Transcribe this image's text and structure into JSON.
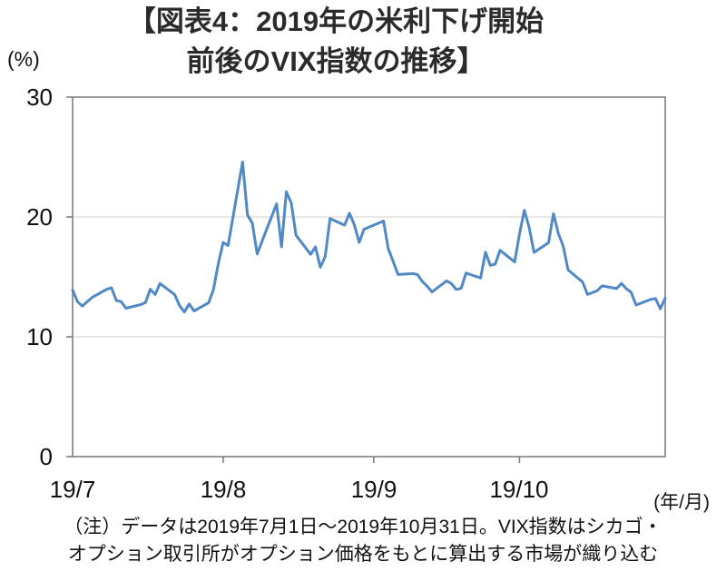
{
  "title": {
    "line1": "【図表4：2019年の米利下げ開始",
    "line2": "前後のVIX指数の推移】"
  },
  "note": {
    "line1": "（注）データは2019年7月1日～2019年10月31日。VIX指数はシカゴ・",
    "line2": "オプション取引所がオプション価格をもとに算出する市場が織り込む"
  },
  "chart_data": {
    "type": "line",
    "title": "2019年の米利下げ開始前後のVIX指数の推移",
    "ylabel": "(%)",
    "xlabel": "(年/月)",
    "ylim": [
      0,
      30
    ],
    "y_ticks": [
      "30",
      "20",
      "10",
      "0"
    ],
    "y_gridlines": [
      10,
      20
    ],
    "x_tick_labels": [
      "19/7",
      "19/8",
      "19/9",
      "19/10"
    ],
    "grid": "horizontal",
    "legend": "none",
    "line_color": "#5089c5",
    "axis_color": "#7f7f7f",
    "grid_color": "#d9d9d9",
    "series_name": "VIX指数",
    "dates": [
      "7/1",
      "7/2",
      "7/3",
      "7/5",
      "7/8",
      "7/9",
      "7/10",
      "7/11",
      "7/12",
      "7/15",
      "7/16",
      "7/17",
      "7/18",
      "7/19",
      "7/22",
      "7/23",
      "7/24",
      "7/25",
      "7/26",
      "7/29",
      "7/30",
      "7/31",
      "8/1",
      "8/2",
      "8/5",
      "8/6",
      "8/7",
      "8/8",
      "8/9",
      "8/12",
      "8/13",
      "8/14",
      "8/15",
      "8/16",
      "8/19",
      "8/20",
      "8/21",
      "8/22",
      "8/23",
      "8/26",
      "8/27",
      "8/28",
      "8/29",
      "8/30",
      "9/3",
      "9/4",
      "9/5",
      "9/6",
      "9/9",
      "9/10",
      "9/11",
      "9/12",
      "9/13",
      "9/16",
      "9/17",
      "9/18",
      "9/19",
      "9/20",
      "9/23",
      "9/24",
      "9/25",
      "9/26",
      "9/27",
      "9/30",
      "10/1",
      "10/2",
      "10/3",
      "10/4",
      "10/7",
      "10/8",
      "10/9",
      "10/10",
      "10/11",
      "10/14",
      "10/15",
      "10/16",
      "10/17",
      "10/18",
      "10/21",
      "10/22",
      "10/23",
      "10/24",
      "10/25",
      "10/28",
      "10/29",
      "10/30",
      "10/31"
    ],
    "values": [
      13.9,
      12.93,
      12.57,
      13.28,
      13.96,
      14.09,
      13.03,
      12.93,
      12.39,
      12.68,
      12.86,
      13.97,
      13.53,
      14.45,
      13.53,
      12.61,
      12.07,
      12.74,
      12.16,
      12.83,
      13.94,
      16.12,
      17.87,
      17.61,
      24.59,
      20.17,
      19.49,
      16.91,
      17.97,
      21.09,
      17.51,
      22.1,
      21.18,
      18.47,
      16.88,
      17.5,
      15.8,
      16.68,
      19.87,
      19.32,
      20.31,
      19.35,
      17.88,
      18.98,
      19.66,
      17.33,
      16.27,
      15.2,
      15.27,
      15.2,
      14.61,
      14.22,
      13.74,
      14.67,
      14.44,
      13.95,
      14.05,
      15.32,
      14.91,
      17.05,
      15.96,
      16.07,
      17.22,
      16.24,
      18.56,
      20.56,
      19.12,
      17.04,
      17.86,
      20.28,
      18.64,
      17.57,
      15.58,
      14.57,
      13.54,
      13.68,
      13.85,
      14.25,
      14.02,
      14.46,
      14.01,
      13.71,
      12.65,
      13.11,
      13.2,
      12.33,
      13.22
    ]
  }
}
